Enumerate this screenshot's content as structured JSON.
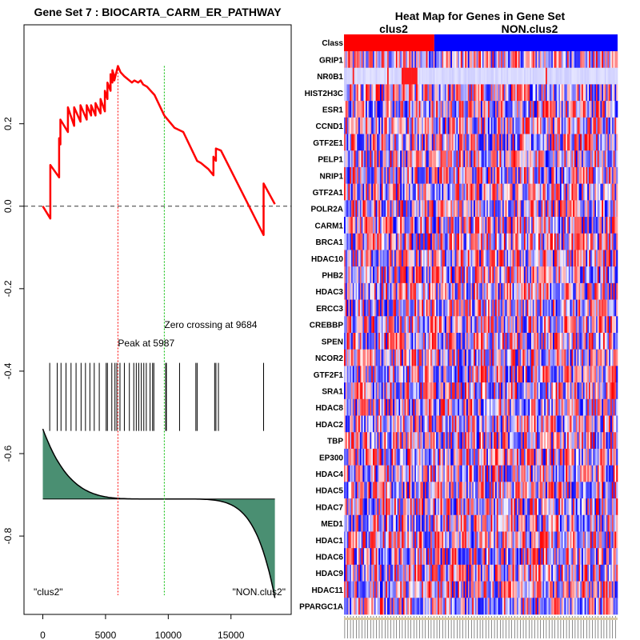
{
  "chart_data": [
    {
      "type": "line",
      "title": "Gene Set  7 : BIOCARTA_CARM_ER_PATHWAY",
      "xlabel": "",
      "ylabel": "",
      "xlim": [
        -1500,
        19800
      ],
      "ylim": [
        -0.99,
        0.44
      ],
      "x_ticks": [
        0,
        5000,
        10000,
        15000
      ],
      "y_ticks": [
        0.2,
        0.0,
        -0.2,
        -0.4,
        -0.6,
        -0.8
      ],
      "y_tick_labels": [
        "0.2",
        "0.0",
        "-0.2",
        "-0.4",
        "-0.6",
        "-0.8"
      ],
      "x_tick_labels": [
        "0",
        "5000",
        "10000",
        "15000"
      ],
      "series": [
        {
          "name": "",
          "color": "#ff0000",
          "x": [
            0,
            600,
            600,
            1300,
            1300,
            1400,
            1400,
            2000,
            2000,
            2500,
            2500,
            3000,
            3000,
            3500,
            3500,
            3850,
            3850,
            4200,
            4200,
            4600,
            4600,
            4950,
            4950,
            5150,
            5150,
            5400,
            5400,
            5550,
            5550,
            5700,
            5700,
            5987,
            6200,
            6500,
            6700,
            6900,
            7100,
            7300,
            7600,
            7800,
            8000,
            8300,
            8600,
            8900,
            9684,
            10500,
            11200,
            12300,
            12600,
            12600,
            13200,
            13600,
            13600,
            13800,
            13800,
            14200,
            17600,
            17600,
            18500
          ],
          "y": [
            0.0,
            -0.03,
            0.1,
            0.07,
            0.165,
            0.15,
            0.21,
            0.18,
            0.24,
            0.195,
            0.24,
            0.205,
            0.245,
            0.21,
            0.245,
            0.22,
            0.245,
            0.22,
            0.25,
            0.225,
            0.26,
            0.23,
            0.28,
            0.26,
            0.3,
            0.28,
            0.32,
            0.3,
            0.33,
            0.315,
            0.305,
            0.34,
            0.325,
            0.315,
            0.31,
            0.305,
            0.3,
            0.305,
            0.3,
            0.305,
            0.295,
            0.29,
            0.28,
            0.27,
            0.22,
            0.19,
            0.18,
            0.11,
            0.105,
            0.105,
            0.09,
            0.075,
            0.12,
            0.11,
            0.14,
            0.135,
            -0.07,
            0.055,
            0.005
          ]
        }
      ],
      "reference_lines": {
        "zero_dashed": 0.0,
        "peak_x": 5987,
        "zero_crossing_x": 9684
      },
      "annotations": [
        {
          "text": "Peak at 5987",
          "x": 5987
        },
        {
          "text": "Zero crossing at 9684",
          "x": 9684
        }
      ],
      "hit_positions": [
        550,
        1150,
        1450,
        1850,
        2250,
        2650,
        3050,
        3400,
        3750,
        4100,
        4500,
        5050,
        5150,
        5500,
        5750,
        5900,
        6150,
        6500,
        6900,
        7250,
        7450,
        7650,
        7850,
        8050,
        8250,
        8550,
        8750,
        8850,
        9800,
        9850,
        10900,
        12200,
        12300,
        13700,
        13800,
        14000,
        17600
      ],
      "ranked_metric_fill": "#4a8f72",
      "group_labels": [
        "\"clus2\"",
        "\"NON.clus2\""
      ]
    },
    {
      "type": "heatmap",
      "title": "Heat Map for Genes in Gene Set",
      "class_row_label": "Class",
      "class_labels": [
        "clus2",
        "NON.clus2"
      ],
      "class_colors": [
        "#ff0000",
        "#0000ff"
      ],
      "class_split_fraction": 0.33,
      "color_scale": {
        "low": "#0000ff",
        "mid": "#ffffff",
        "high": "#ff0000"
      },
      "rows": [
        "GRIP1",
        "NR0B1",
        "HIST2H3C",
        "ESR1",
        "CCND1",
        "GTF2E1",
        "PELP1",
        "NRIP1",
        "GTF2A1",
        "POLR2A",
        "CARM1",
        "BRCA1",
        "HDAC10",
        "PHB2",
        "HDAC3",
        "ERCC3",
        "CREBBP",
        "SPEN",
        "NCOR2",
        "GTF2F1",
        "SRA1",
        "HDAC8",
        "HDAC2",
        "TBP",
        "EP300",
        "HDAC4",
        "HDAC5",
        "HDAC7",
        "MED1",
        "HDAC1",
        "HDAC6",
        "HDAC9",
        "HDAC11",
        "PPARGC1A"
      ]
    }
  ]
}
